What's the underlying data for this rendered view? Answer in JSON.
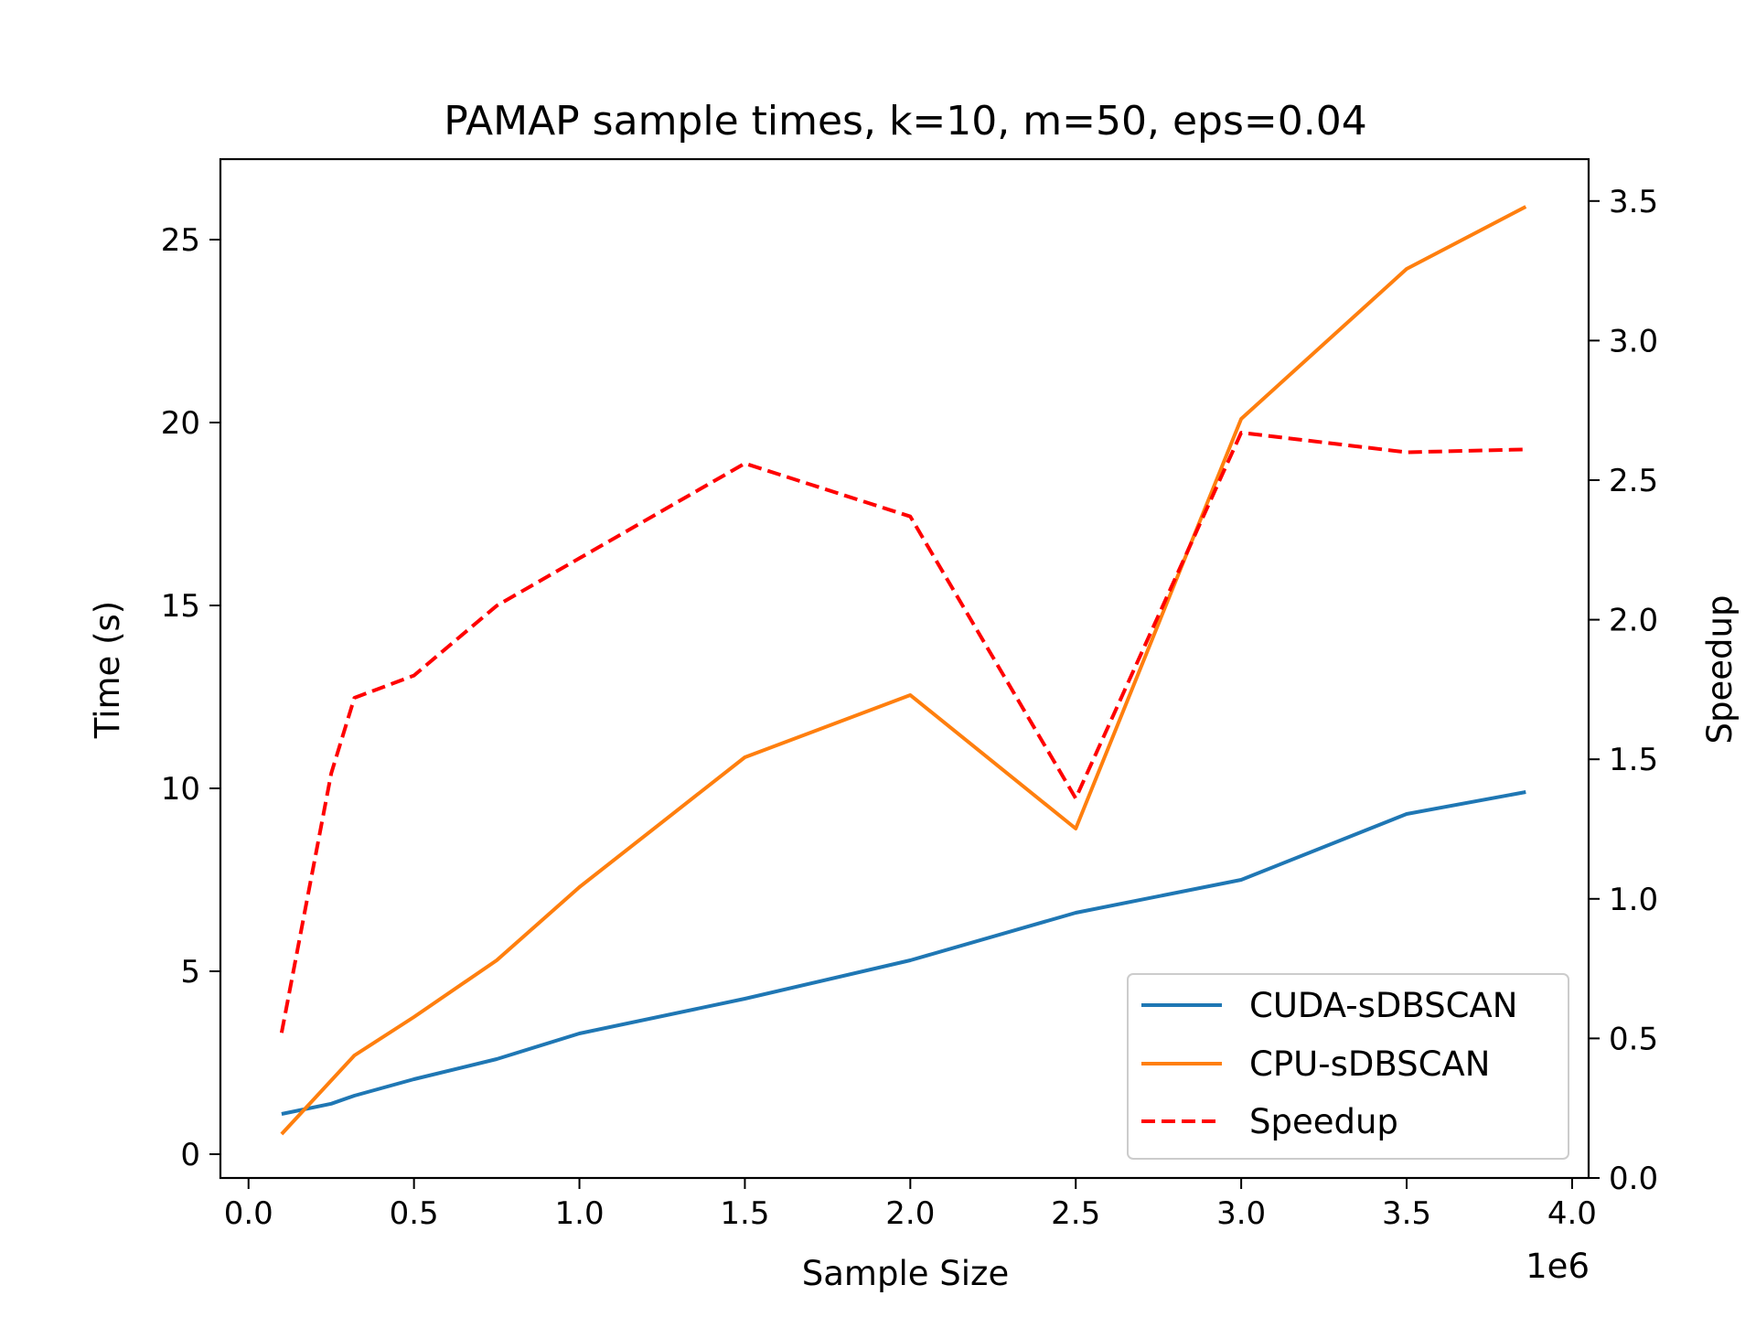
{
  "chart_data": {
    "type": "line",
    "title": "PAMAP sample times, k=10, m=50, eps=0.04",
    "xlabel": "Sample Size",
    "ylabel": "Time (s)",
    "y2label": "Speedup",
    "x_offset_label": "1e6",
    "xlim": [
      -0.085,
      4.05
    ],
    "ylim": [
      -0.65,
      27.2
    ],
    "y2lim": [
      0.0,
      3.65
    ],
    "x_ticks": [
      0.0,
      0.5,
      1.0,
      1.5,
      2.0,
      2.5,
      3.0,
      3.5,
      4.0
    ],
    "x_tick_labels": [
      "0.0",
      "0.5",
      "1.0",
      "1.5",
      "2.0",
      "2.5",
      "3.0",
      "3.5",
      "4.0"
    ],
    "y_ticks": [
      0,
      5,
      10,
      15,
      20,
      25
    ],
    "y_tick_labels": [
      "0",
      "5",
      "10",
      "15",
      "20",
      "25"
    ],
    "y2_ticks": [
      0.0,
      0.5,
      1.0,
      1.5,
      2.0,
      2.5,
      3.0,
      3.5
    ],
    "y2_tick_labels": [
      "0.0",
      "0.5",
      "1.0",
      "1.5",
      "2.0",
      "2.5",
      "3.0",
      "3.5"
    ],
    "grid": false,
    "legend_position": "lower-right",
    "series": [
      {
        "name": "CUDA-sDBSCAN",
        "axis": "left",
        "color": "#1f77b4",
        "style": "solid",
        "x": [
          0.1,
          0.25,
          0.32,
          0.5,
          0.75,
          1.0,
          1.5,
          2.0,
          2.5,
          3.0,
          3.5,
          3.86
        ],
        "y": [
          1.1,
          1.38,
          1.6,
          2.05,
          2.6,
          3.3,
          4.25,
          5.3,
          6.6,
          7.5,
          9.3,
          9.9
        ]
      },
      {
        "name": "CPU-sDBSCAN",
        "axis": "left",
        "color": "#ff7f0e",
        "style": "solid",
        "x": [
          0.1,
          0.32,
          0.5,
          0.75,
          1.0,
          1.5,
          2.0,
          2.5,
          3.0,
          3.5,
          3.86
        ],
        "y": [
          0.55,
          2.7,
          3.75,
          5.3,
          7.3,
          10.85,
          12.55,
          8.9,
          20.1,
          24.2,
          25.9
        ]
      },
      {
        "name": "Speedup",
        "axis": "right",
        "color": "#ff0000",
        "style": "dashed",
        "x": [
          0.1,
          0.25,
          0.32,
          0.5,
          0.75,
          1.0,
          1.5,
          2.0,
          2.5,
          3.0,
          3.5,
          3.86
        ],
        "y": [
          0.52,
          1.45,
          1.72,
          1.8,
          2.05,
          2.22,
          2.56,
          2.37,
          1.36,
          2.67,
          2.6,
          2.61
        ]
      }
    ]
  }
}
